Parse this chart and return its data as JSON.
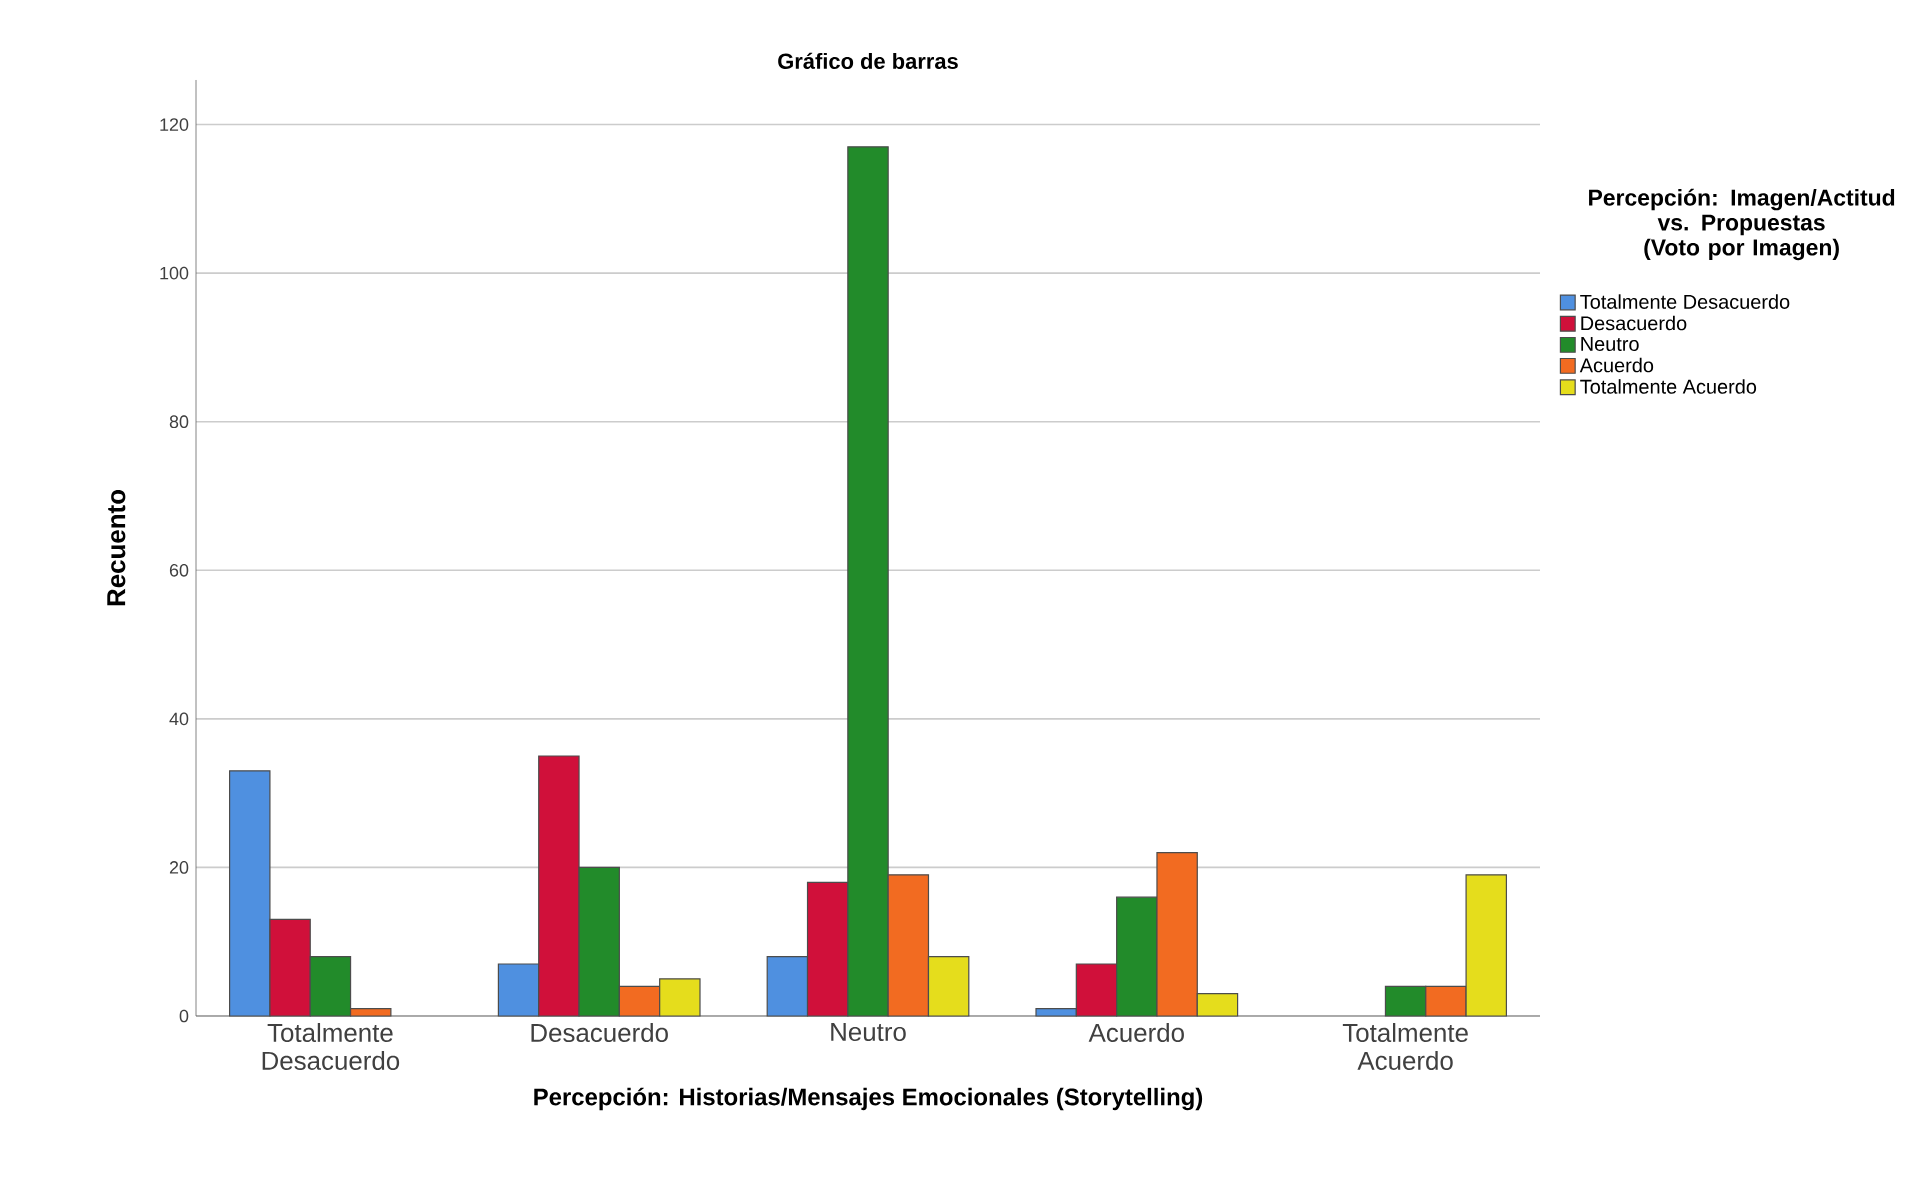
{
  "chart_data": {
    "type": "bar",
    "title": "Gráfico de barras",
    "xlabel": "Percepción: Historias/Mensajes Emocionales (Storytelling)",
    "ylabel": "Recuento",
    "legend_title": "Percepción: Imagen/Actitud vs. Propuestas (Voto por Imagen)",
    "categories": [
      "Totalmente Desacuerdo",
      "Desacuerdo",
      "Neutro",
      "Acuerdo",
      "Totalmente Acuerdo"
    ],
    "series": [
      {
        "name": "Totalmente Desacuerdo",
        "color": "#4f90e0",
        "values": [
          33,
          7,
          8,
          1,
          null
        ]
      },
      {
        "name": "Desacuerdo",
        "color": "#d0103a",
        "values": [
          13,
          35,
          18,
          7,
          null
        ]
      },
      {
        "name": "Neutro",
        "color": "#228b2a",
        "values": [
          8,
          20,
          117,
          16,
          4
        ]
      },
      {
        "name": "Acuerdo",
        "color": "#f26b21",
        "values": [
          1,
          4,
          19,
          22,
          4
        ]
      },
      {
        "name": "Totalmente Acuerdo",
        "color": "#e5dd1c",
        "values": [
          null,
          5,
          8,
          3,
          19
        ]
      }
    ],
    "ylim": [
      0,
      126
    ],
    "yticks": [
      0,
      20,
      40,
      60,
      80,
      100,
      120
    ],
    "grid": "y",
    "legend": "right"
  }
}
